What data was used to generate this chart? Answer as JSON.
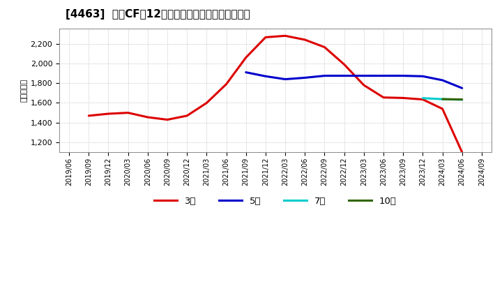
{
  "title": "[4463]  営業CFの12か月移動合計の標準偏差の推移",
  "ylabel": "（百万円）",
  "ylim": [
    1100,
    2350
  ],
  "yticks": [
    1200,
    1400,
    1600,
    1800,
    2000,
    2200
  ],
  "background_color": "#ffffff",
  "plot_bg_color": "#ffffff",
  "grid_color": "#aaaaaa",
  "series": {
    "3年": {
      "color": "#dd0000",
      "x": [
        "2019/09",
        "2019/12",
        "2020/03",
        "2020/06",
        "2020/09",
        "2020/12",
        "2021/03",
        "2021/06",
        "2021/09",
        "2021/12",
        "2022/03",
        "2022/06",
        "2022/09",
        "2022/12",
        "2023/03",
        "2023/06",
        "2023/09",
        "2023/12",
        "2024/03",
        "2024/06"
      ],
      "y": [
        1470,
        1490,
        1500,
        1455,
        1430,
        1470,
        1600,
        1790,
        2060,
        2265,
        2280,
        2240,
        2165,
        1990,
        1780,
        1655,
        1650,
        1635,
        1540,
        1100
      ]
    },
    "5年": {
      "color": "#0000cc",
      "x": [
        "2021/09",
        "2021/12",
        "2022/03",
        "2022/06",
        "2022/09",
        "2022/12",
        "2023/03",
        "2023/06",
        "2023/09",
        "2023/12",
        "2024/03",
        "2024/06"
      ],
      "y": [
        1910,
        1870,
        1840,
        1855,
        1875,
        1875,
        1875,
        1875,
        1875,
        1870,
        1830,
        1750
      ]
    },
    "7年": {
      "color": "#00cccc",
      "x": [
        "2023/12",
        "2024/03",
        "2024/06"
      ],
      "y": [
        1648,
        1638,
        1632
      ]
    },
    "10年": {
      "color": "#336600",
      "x": [
        "2024/03",
        "2024/06"
      ],
      "y": [
        1638,
        1635
      ]
    }
  },
  "xticks": [
    "2019/06",
    "2019/09",
    "2019/12",
    "2020/03",
    "2020/06",
    "2020/09",
    "2020/12",
    "2021/03",
    "2021/06",
    "2021/09",
    "2021/12",
    "2022/03",
    "2022/06",
    "2022/09",
    "2022/12",
    "2023/03",
    "2023/06",
    "2023/09",
    "2023/12",
    "2024/03",
    "2024/06",
    "2024/09"
  ],
  "legend_labels": [
    "3年",
    "5年",
    "7年",
    "10年"
  ],
  "legend_colors": [
    "#dd0000",
    "#0000cc",
    "#00cccc",
    "#336600"
  ]
}
